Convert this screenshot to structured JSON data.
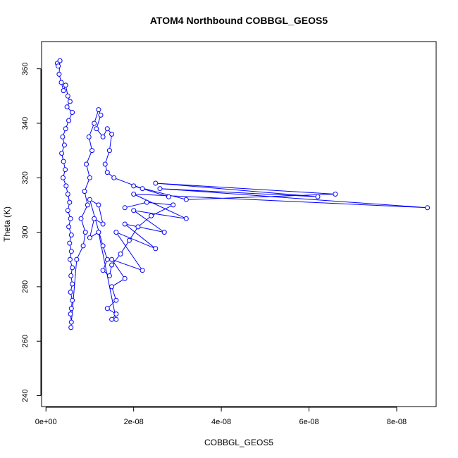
{
  "chart_data": {
    "type": "line",
    "title": "ATOM4 Northbound COBBGL_GEOS5",
    "xlabel": "COBBGL_GEOS5",
    "ylabel": "Theta (K)",
    "xlim": [
      -1e-09,
      8.9e-08
    ],
    "ylim": [
      236,
      370
    ],
    "x_ticks": [
      0,
      2e-08,
      4e-08,
      6e-08,
      8e-08
    ],
    "x_tick_labels": [
      "0e+00",
      "2e-08",
      "4e-08",
      "6e-08",
      "8e-08"
    ],
    "y_ticks": [
      240,
      260,
      280,
      300,
      320,
      340,
      360
    ],
    "y_tick_labels": [
      "240",
      "260",
      "280",
      "300",
      "320",
      "340",
      "360"
    ],
    "grid": false,
    "legend": "none",
    "marker": "open-circle",
    "line_style": "solid",
    "series_color": "#0000ff",
    "series": [
      {
        "points": [
          [
            2.6e-09,
            362
          ],
          [
            2.8e-09,
            361
          ],
          [
            3.2e-09,
            363
          ],
          [
            3e-09,
            358
          ],
          [
            3.5e-09,
            355
          ],
          [
            4e-09,
            352
          ],
          [
            4.5e-09,
            354
          ],
          [
            5e-09,
            350
          ],
          [
            5.5e-09,
            348
          ],
          [
            4.8e-09,
            346
          ],
          [
            6e-09,
            344
          ],
          [
            5.2e-09,
            341
          ],
          [
            4.5e-09,
            338
          ],
          [
            3.8e-09,
            335
          ],
          [
            4.2e-09,
            332
          ],
          [
            3.6e-09,
            329
          ],
          [
            4e-09,
            326
          ],
          [
            4.4e-09,
            323
          ],
          [
            3.9e-09,
            320
          ],
          [
            4.6e-09,
            317
          ],
          [
            5e-09,
            314
          ],
          [
            5.4e-09,
            311
          ],
          [
            5e-09,
            308
          ],
          [
            5.6e-09,
            305
          ],
          [
            5.2e-09,
            302
          ],
          [
            5.8e-09,
            299
          ],
          [
            5.4e-09,
            296
          ],
          [
            5.8e-09,
            293
          ],
          [
            5.5e-09,
            290
          ],
          [
            6e-09,
            287
          ],
          [
            5.7e-09,
            284
          ],
          [
            6e-09,
            281
          ],
          [
            5.6e-09,
            278
          ],
          [
            6e-09,
            275
          ],
          [
            5.8e-09,
            272
          ],
          [
            5.6e-09,
            270
          ],
          [
            5.8e-09,
            267
          ],
          [
            5.7e-09,
            265
          ],
          [
            7e-09,
            290
          ],
          [
            8.5e-09,
            295
          ],
          [
            9e-09,
            300
          ],
          [
            8e-09,
            305
          ],
          [
            9.5e-09,
            310
          ],
          [
            8.8e-09,
            315
          ],
          [
            1e-08,
            320
          ],
          [
            9.2e-09,
            325
          ],
          [
            1.05e-08,
            330
          ],
          [
            9.8e-09,
            335
          ],
          [
            1.1e-08,
            340
          ],
          [
            1.2e-08,
            345
          ],
          [
            1.25e-08,
            343
          ],
          [
            1.15e-08,
            338
          ],
          [
            1.3e-08,
            335
          ],
          [
            1.4e-08,
            338
          ],
          [
            1.5e-08,
            336
          ],
          [
            1.45e-08,
            330
          ],
          [
            1.35e-08,
            325
          ],
          [
            1.4e-08,
            322
          ],
          [
            1.55e-08,
            320
          ],
          [
            2.2e-08,
            316
          ],
          [
            2.8e-08,
            313
          ],
          [
            2e-08,
            317
          ],
          [
            3.2e-08,
            312
          ],
          [
            6.6e-08,
            314
          ],
          [
            2.5e-08,
            318
          ],
          [
            6.2e-08,
            313
          ],
          [
            2.6e-08,
            316
          ],
          [
            8.7e-08,
            309
          ],
          [
            2e-08,
            314
          ],
          [
            3.2e-08,
            305
          ],
          [
            2e-08,
            308
          ],
          [
            2.7e-08,
            300
          ],
          [
            1.8e-08,
            303
          ],
          [
            2.5e-08,
            294
          ],
          [
            1.6e-08,
            300
          ],
          [
            2.2e-08,
            286
          ],
          [
            1.5e-08,
            290
          ],
          [
            1.8e-08,
            283
          ],
          [
            1.5e-08,
            280
          ],
          [
            1.6e-08,
            275
          ],
          [
            1.4e-08,
            272
          ],
          [
            1.6e-08,
            270
          ],
          [
            1.5e-08,
            268
          ],
          [
            1.6e-08,
            268
          ],
          [
            1.2e-08,
            300
          ],
          [
            1e-08,
            298
          ],
          [
            1.1e-08,
            305
          ],
          [
            1.3e-08,
            303
          ],
          [
            1.2e-08,
            310
          ],
          [
            1e-08,
            312
          ],
          [
            1.3e-08,
            295
          ],
          [
            1.4e-08,
            290
          ],
          [
            1.3e-08,
            286
          ],
          [
            1.45e-08,
            284
          ],
          [
            1.5e-08,
            288
          ],
          [
            1.7e-08,
            292
          ],
          [
            1.9e-08,
            297
          ],
          [
            2.1e-08,
            302
          ],
          [
            2.4e-08,
            306
          ],
          [
            2.9e-08,
            310
          ],
          [
            2.3e-08,
            311
          ],
          [
            1.8e-08,
            309
          ]
        ]
      }
    ]
  }
}
